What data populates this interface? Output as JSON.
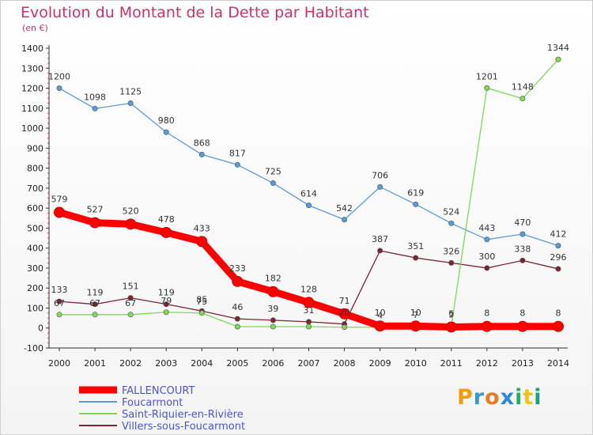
{
  "chart_data": {
    "type": "line",
    "title": "Evolution du Montant de la Dette par Habitant",
    "subtitle": "(en €)",
    "x": [
      "2000",
      "2001",
      "2002",
      "2003",
      "2004",
      "2005",
      "2006",
      "2007",
      "2008",
      "2009",
      "2010",
      "2011",
      "2012",
      "2013",
      "2014"
    ],
    "ylim": [
      -100,
      1400
    ],
    "yticks": [
      -100,
      0,
      100,
      200,
      300,
      400,
      500,
      600,
      700,
      800,
      900,
      1000,
      1100,
      1200,
      1300,
      1400
    ],
    "grid": false,
    "legend_position": "bottom-left",
    "series": [
      {
        "name": "FALLENCOURT",
        "color": "#ff0000",
        "values": [
          579,
          527,
          520,
          478,
          433,
          233,
          182,
          128,
          71,
          10,
          10,
          5,
          8,
          8,
          8
        ],
        "labels": [
          "579",
          "527",
          "520",
          "478",
          "433",
          "233",
          "182",
          "128",
          "71",
          "10",
          "10",
          "5",
          "8",
          "8",
          "8"
        ]
      },
      {
        "name": "Foucarmont",
        "color": "#5b9bd5",
        "values": [
          1200,
          1098,
          1125,
          980,
          868,
          817,
          725,
          614,
          542,
          706,
          619,
          524,
          443,
          470,
          412
        ],
        "labels": [
          "1200",
          "1098",
          "1125",
          "980",
          "868",
          "817",
          "725",
          "614",
          "542",
          "706",
          "619",
          "524",
          "443",
          "470",
          "412"
        ]
      },
      {
        "name": "Saint-Riquier-en-Rivière",
        "color": "#7ed957",
        "values": [
          67,
          67,
          67,
          79,
          75,
          7,
          7,
          7,
          4,
          4,
          7,
          9,
          1201,
          1148,
          1344
        ],
        "labels": [
          "67",
          "67",
          "67",
          "79",
          "75",
          "",
          "",
          "",
          "",
          "4",
          "7",
          "9",
          "1201",
          "1148",
          "1344"
        ]
      },
      {
        "name": "Villers-sous-Foucarmont",
        "color": "#7a2530",
        "values": [
          133,
          119,
          151,
          119,
          85,
          46,
          39,
          31,
          20,
          387,
          351,
          326,
          300,
          338,
          296
        ],
        "labels": [
          "133",
          "119",
          "151",
          "119",
          "85",
          "46",
          "39",
          "31",
          "20",
          "387",
          "351",
          "326",
          "300",
          "338",
          "296"
        ]
      }
    ]
  },
  "logo": {
    "text": "Proxiti",
    "letters": [
      "P",
      "r",
      "o",
      "x",
      "i",
      "t",
      "i"
    ]
  }
}
